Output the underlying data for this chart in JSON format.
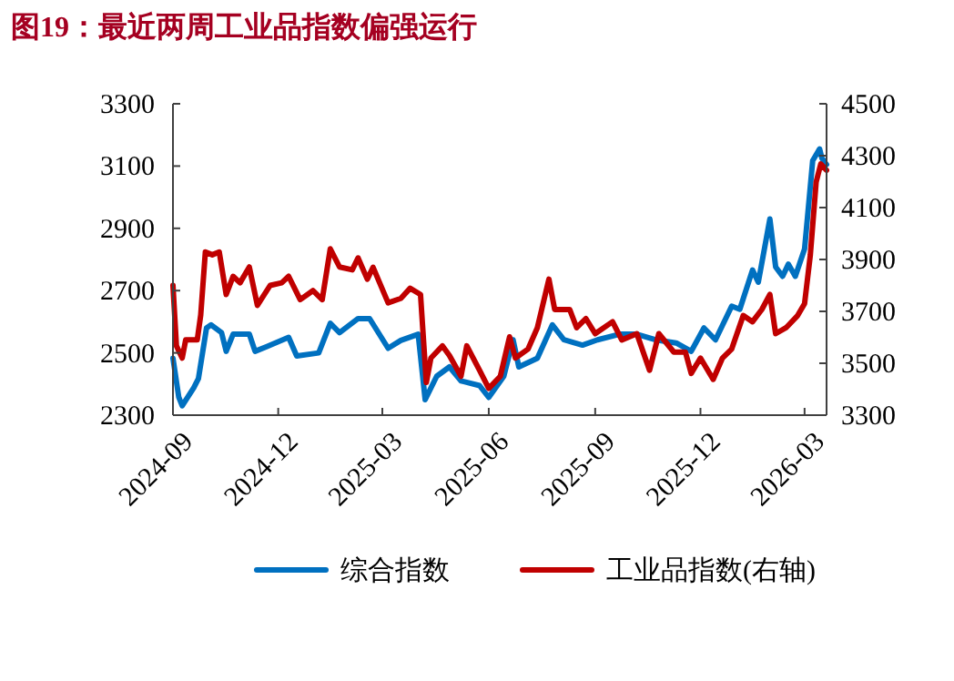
{
  "chart_data": {
    "type": "line",
    "title": "图19：最近两周工业品指数偏强运行",
    "xlim": [
      "2024-09-01",
      "2026-03-20"
    ],
    "xticks": [
      "2024-09",
      "2024-12",
      "2025-03",
      "2025-06",
      "2025-09",
      "2025-12",
      "2026-03"
    ],
    "ylim": [
      2300,
      3300
    ],
    "yticks": [
      2300,
      2500,
      2700,
      2900,
      3100,
      3300
    ],
    "y2lim": [
      3300,
      4500
    ],
    "y2ticks": [
      3300,
      3500,
      3700,
      3900,
      4100,
      4300,
      4500
    ],
    "legend": "bottom",
    "grid": false,
    "series": [
      {
        "name": "综合指数",
        "color": "#0070c0",
        "x": [
          "2024-09-01",
          "2024-09-06",
          "2024-09-09",
          "2024-09-19",
          "2024-09-23",
          "2024-09-30",
          "2024-10-04",
          "2024-10-13",
          "2024-10-17",
          "2024-10-23",
          "2024-11-06",
          "2024-11-11",
          "2024-11-21",
          "2024-12-10",
          "2024-12-17",
          "2025-01-05",
          "2025-01-15",
          "2025-01-23",
          "2025-02-08",
          "2025-02-18",
          "2025-03-06",
          "2025-03-17",
          "2025-04-01",
          "2025-04-07",
          "2025-04-17",
          "2025-04-28",
          "2025-05-08",
          "2025-05-24",
          "2025-06-01",
          "2025-06-14",
          "2025-06-22",
          "2025-06-27",
          "2025-07-13",
          "2025-07-26",
          "2025-08-05",
          "2025-08-21",
          "2025-09-03",
          "2025-09-22",
          "2025-10-07",
          "2025-10-23",
          "2025-11-10",
          "2025-11-23",
          "2025-12-04",
          "2025-12-14",
          "2025-12-28",
          "2026-01-04",
          "2026-01-15",
          "2026-01-20",
          "2026-01-30",
          "2026-02-04",
          "2026-02-10",
          "2026-02-15",
          "2026-02-21",
          "2026-03-01",
          "2026-03-08",
          "2026-03-14",
          "2026-03-16",
          "2026-03-20"
        ],
        "values": [
          2483,
          2358,
          2330,
          2388,
          2417,
          2580,
          2590,
          2565,
          2505,
          2560,
          2560,
          2505,
          2520,
          2550,
          2490,
          2500,
          2595,
          2565,
          2610,
          2610,
          2515,
          2540,
          2560,
          2350,
          2425,
          2455,
          2410,
          2395,
          2357,
          2425,
          2542,
          2455,
          2483,
          2590,
          2542,
          2525,
          2542,
          2560,
          2560,
          2542,
          2532,
          2505,
          2580,
          2542,
          2650,
          2640,
          2766,
          2727,
          2930,
          2776,
          2746,
          2785,
          2746,
          2834,
          3117,
          3155,
          3125,
          3105
        ]
      },
      {
        "name": "工业品指数(右轴)",
        "color": "#c00000",
        "axis": "y2",
        "x": [
          "2024-09-01",
          "2024-09-04",
          "2024-09-09",
          "2024-09-12",
          "2024-09-22",
          "2024-09-25",
          "2024-09-29",
          "2024-10-05",
          "2024-10-11",
          "2024-10-17",
          "2024-10-23",
          "2024-10-29",
          "2024-11-06",
          "2024-11-13",
          "2024-11-24",
          "2024-12-04",
          "2024-12-10",
          "2024-12-20",
          "2024-12-31",
          "2025-01-08",
          "2025-01-15",
          "2025-01-23",
          "2025-02-03",
          "2025-02-08",
          "2025-02-16",
          "2025-02-21",
          "2025-03-06",
          "2025-03-17",
          "2025-03-25",
          "2025-04-03",
          "2025-04-08",
          "2025-04-12",
          "2025-04-22",
          "2025-04-28",
          "2025-05-08",
          "2025-05-13",
          "2025-05-24",
          "2025-06-01",
          "2025-06-11",
          "2025-06-19",
          "2025-06-24",
          "2025-07-05",
          "2025-07-13",
          "2025-07-23",
          "2025-07-28",
          "2025-08-10",
          "2025-08-16",
          "2025-08-24",
          "2025-09-01",
          "2025-09-16",
          "2025-09-24",
          "2025-10-07",
          "2025-10-18",
          "2025-10-26",
          "2025-11-08",
          "2025-11-18",
          "2025-11-23",
          "2025-12-01",
          "2025-12-12",
          "2025-12-20",
          "2025-12-28",
          "2026-01-07",
          "2026-01-15",
          "2026-01-23",
          "2026-01-30",
          "2026-02-04",
          "2026-02-13",
          "2026-02-23",
          "2026-03-01",
          "2026-03-06",
          "2026-03-11",
          "2026-03-15",
          "2026-03-20"
        ],
        "values": [
          3800,
          3567,
          3520,
          3590,
          3590,
          3686,
          3929,
          3918,
          3929,
          3765,
          3835,
          3810,
          3871,
          3723,
          3800,
          3810,
          3835,
          3745,
          3780,
          3745,
          3941,
          3871,
          3860,
          3906,
          3824,
          3870,
          3733,
          3750,
          3789,
          3765,
          3426,
          3520,
          3567,
          3530,
          3450,
          3567,
          3473,
          3403,
          3450,
          3602,
          3520,
          3555,
          3637,
          3824,
          3707,
          3707,
          3637,
          3672,
          3614,
          3660,
          3590,
          3614,
          3473,
          3614,
          3543,
          3543,
          3461,
          3520,
          3438,
          3520,
          3555,
          3684,
          3660,
          3707,
          3765,
          3614,
          3637,
          3684,
          3730,
          3918,
          4198,
          4268,
          4244
        ]
      }
    ]
  }
}
